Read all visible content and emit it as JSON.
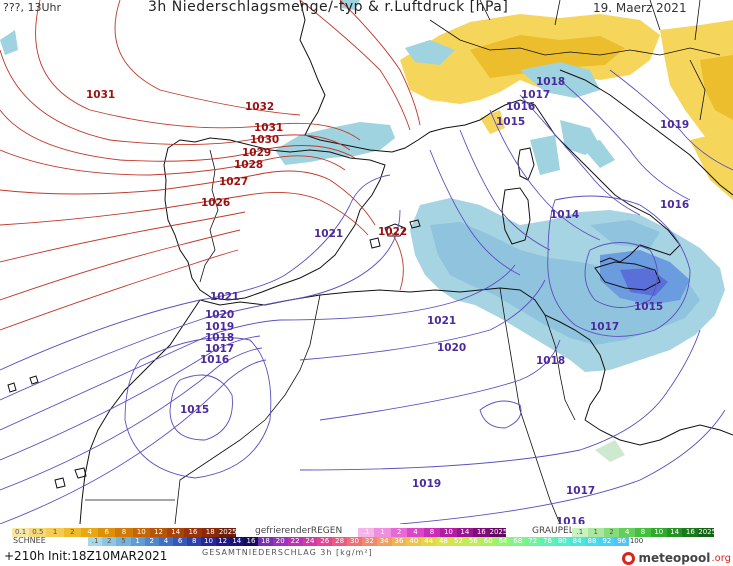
{
  "header": {
    "left": "???, 13Uhr",
    "title": "3h Niederschlagsmenge/-typ & r.Luftdruck [hPa]",
    "date": "19. Maerz 2021"
  },
  "isobar_labels": [
    {
      "value": "1031",
      "color": "#9b1010"
    },
    {
      "value": "1032",
      "color": "#9b1010"
    },
    {
      "value": "1031",
      "color": "#9b1010"
    },
    {
      "value": "1030",
      "color": "#9b1010"
    },
    {
      "value": "1029",
      "color": "#9b1010"
    },
    {
      "value": "1028",
      "color": "#9b1010"
    },
    {
      "value": "1027",
      "color": "#9b1010"
    },
    {
      "value": "1026",
      "color": "#9b1010"
    },
    {
      "value": "1022",
      "color": "#9b1010"
    },
    {
      "value": "1021",
      "color": "#4b2a9e"
    },
    {
      "value": "1021",
      "color": "#4b2a9e"
    },
    {
      "value": "1020",
      "color": "#4b2a9e"
    },
    {
      "value": "1019",
      "color": "#4b2a9e"
    },
    {
      "value": "1018",
      "color": "#4b2a9e"
    },
    {
      "value": "1017",
      "color": "#4b2a9e"
    },
    {
      "value": "1016",
      "color": "#4b2a9e"
    },
    {
      "value": "1015",
      "color": "#4b2a9e"
    },
    {
      "value": "1021",
      "color": "#4b2a9e"
    },
    {
      "value": "1020",
      "color": "#4b2a9e"
    },
    {
      "value": "1018",
      "color": "#4b2a9e"
    },
    {
      "value": "1019",
      "color": "#4b2a9e"
    },
    {
      "value": "1017",
      "color": "#4b2a9e"
    },
    {
      "value": "1016",
      "color": "#4b2a9e"
    },
    {
      "value": "1018",
      "color": "#4b2a9e"
    },
    {
      "value": "1017",
      "color": "#4b2a9e"
    },
    {
      "value": "1016",
      "color": "#4b2a9e"
    },
    {
      "value": "1015",
      "color": "#4b2a9e"
    },
    {
      "value": "1019",
      "color": "#4b2a9e"
    },
    {
      "value": "1016",
      "color": "#4b2a9e"
    },
    {
      "value": "1014",
      "color": "#4b2a9e"
    },
    {
      "value": "1015",
      "color": "#4b2a9e"
    },
    {
      "value": "1017",
      "color": "#4b2a9e"
    }
  ],
  "legend": {
    "regen_scale": [
      "0.1",
      "0.5",
      "1",
      "2",
      "4",
      "6",
      "8",
      "10",
      "12",
      "14",
      "16",
      "18",
      "2025+"
    ],
    "regen_colors": [
      "#f6e7a6",
      "#f5d87a",
      "#f3cb55",
      "#f0bb2a",
      "#e9a712",
      "#de9108",
      "#d17a05",
      "#c46606",
      "#b65407",
      "#a84408",
      "#983407",
      "#882a07",
      "#6e1e06"
    ],
    "gefrierender_label": "gefrierenderREGEN",
    "gefrierender_scale": [
      ".1",
      "1",
      "2",
      "4",
      "8",
      "10",
      "14",
      "16",
      "2025+"
    ],
    "gefrierender_colors": [
      "#f6b5ea",
      "#ef8fe0",
      "#e56ad4",
      "#d946c6",
      "#c82db5",
      "#b11ea2",
      "#9a1490",
      "#7f0c79",
      "#640662"
    ],
    "schnee_label": "SCHNEE",
    "schnee_scale": [
      ".1",
      "2",
      "5",
      "1",
      "2",
      "4",
      "6",
      "8",
      "10",
      "12",
      "14",
      "16"
    ],
    "schnee_colors": [
      "#a8d8e8",
      "#8cc6e2",
      "#74b3dc",
      "#5f9ed4",
      "#4d88cc",
      "#4070c3",
      "#3658b8",
      "#2d41aa",
      "#24289a",
      "#1f1a86",
      "#1a1273",
      "#150c5e"
    ],
    "graupel_label": "GRAUPEL",
    "graupel_scale": [
      ".1",
      "1",
      "2",
      "4",
      "8",
      "10",
      "14",
      "16",
      "2025+"
    ],
    "graupel_colors": [
      "#c8f2c0",
      "#a9e89e",
      "#86dc7a",
      "#63cf59",
      "#45bf3e",
      "#31a92f",
      "#259224",
      "#1a7a1b",
      "#116313"
    ],
    "total_scale": [
      "18",
      "20",
      "22",
      "24",
      "26",
      "28",
      "30",
      "32",
      "34",
      "36",
      "40",
      "44",
      "48",
      "52",
      "56",
      "60",
      "64",
      "68",
      "72",
      "76",
      "80",
      "84",
      "88",
      "92",
      "96",
      "100"
    ],
    "total_colors": [
      "#7a2fb5",
      "#9b34b8",
      "#b935b3",
      "#d23aa5",
      "#e24694",
      "#ec5a84",
      "#f07175",
      "#f18a68",
      "#f0a05d",
      "#eeb455",
      "#eac64f",
      "#e4d64b",
      "#dbe24a",
      "#cde84e",
      "#bded57",
      "#aaf063",
      "#96f273",
      "#82f385",
      "#70f39a",
      "#60f1b0",
      "#54ecc6",
      "#4ce5da",
      "#48dbeb",
      "#4acff6",
      "#53c2fb",
      "#ffffff"
    ],
    "gesamt_label": "GESAMTNIEDERSCHLAG 3h [kg/m²]"
  },
  "footer": {
    "lead": "+210h",
    "init": "Init:18Z10MAR2021",
    "brand": "meteopool",
    "brand_suffix": ".org"
  }
}
